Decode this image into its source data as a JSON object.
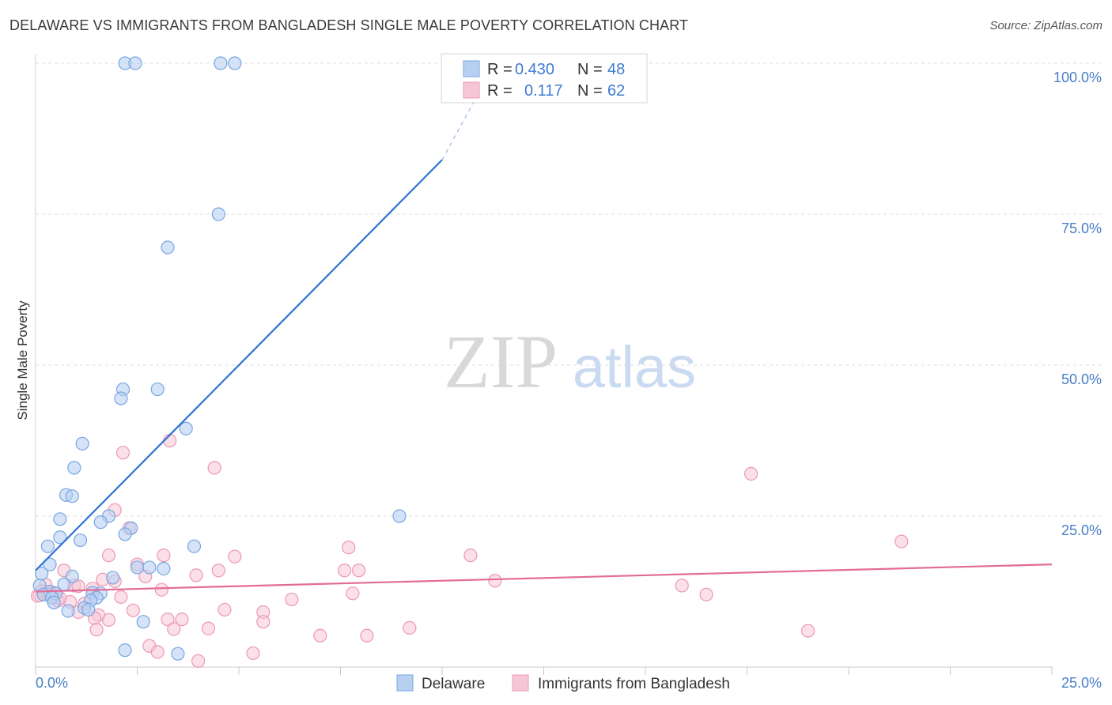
{
  "title": "DELAWARE VS IMMIGRANTS FROM BANGLADESH SINGLE MALE POVERTY CORRELATION CHART",
  "source": "Source: ZipAtlas.com",
  "watermark": {
    "zip": "ZIP",
    "atlas": "atlas"
  },
  "colors": {
    "delaware_fill": "#b7d0f2",
    "delaware_stroke": "#7aa6e0",
    "delaware_line": "#2f72d3",
    "bangladesh_fill": "#f7c6d6",
    "bangladesh_stroke": "#ec98b4",
    "bangladesh_line": "#e36c96",
    "tick_text": "#4a7fc8",
    "grid": "#dcdcdc"
  },
  "legend": {
    "r_label": "R =",
    "n_label": "N =",
    "series": [
      {
        "name": "Delaware",
        "r": "0.430",
        "n": "48"
      },
      {
        "name": "Immigrants from Bangladesh",
        "r": "0.117",
        "n": "62"
      }
    ]
  },
  "chart_data": {
    "type": "scatter",
    "title": "DELAWARE VS IMMIGRANTS FROM BANGLADESH SINGLE MALE POVERTY CORRELATION CHART",
    "xlabel": "",
    "ylabel": "Single Male Poverty",
    "xlim": [
      0,
      25
    ],
    "ylim": [
      0,
      100
    ],
    "x_tick_labels": [
      "0.0%",
      "25.0%"
    ],
    "y_ticks": [
      25,
      50,
      75,
      100
    ],
    "y_tick_labels": [
      "25.0%",
      "50.0%",
      "75.0%",
      "100.0%"
    ],
    "legend_position": "top-center",
    "grid": true,
    "series": [
      {
        "name": "Delaware",
        "r": 0.43,
        "n": 48,
        "trend": {
          "x": [
            0,
            10
          ],
          "y": [
            16,
            84
          ],
          "dashed_extension_to": [
            11.3,
            100
          ]
        },
        "points": [
          {
            "x": 2.2,
            "y": 100
          },
          {
            "x": 2.45,
            "y": 100
          },
          {
            "x": 4.55,
            "y": 100
          },
          {
            "x": 4.9,
            "y": 100
          },
          {
            "x": 4.5,
            "y": 75
          },
          {
            "x": 3.25,
            "y": 69.5
          },
          {
            "x": 2.15,
            "y": 46
          },
          {
            "x": 3.0,
            "y": 46
          },
          {
            "x": 2.1,
            "y": 44.5
          },
          {
            "x": 3.7,
            "y": 39.5
          },
          {
            "x": 1.15,
            "y": 37
          },
          {
            "x": 0.95,
            "y": 33
          },
          {
            "x": 0.75,
            "y": 28.5
          },
          {
            "x": 0.9,
            "y": 28.3
          },
          {
            "x": 8.95,
            "y": 25
          },
          {
            "x": 1.8,
            "y": 25
          },
          {
            "x": 0.6,
            "y": 24.5
          },
          {
            "x": 1.6,
            "y": 24
          },
          {
            "x": 2.35,
            "y": 23
          },
          {
            "x": 2.2,
            "y": 22
          },
          {
            "x": 0.6,
            "y": 21.5
          },
          {
            "x": 1.1,
            "y": 21
          },
          {
            "x": 0.3,
            "y": 20
          },
          {
            "x": 3.9,
            "y": 20
          },
          {
            "x": 0.35,
            "y": 17
          },
          {
            "x": 2.5,
            "y": 16.5
          },
          {
            "x": 2.8,
            "y": 16.5
          },
          {
            "x": 3.15,
            "y": 16.3
          },
          {
            "x": 0.15,
            "y": 15.5
          },
          {
            "x": 0.9,
            "y": 15
          },
          {
            "x": 1.9,
            "y": 14.8
          },
          {
            "x": 0.7,
            "y": 13.7
          },
          {
            "x": 0.1,
            "y": 13.5
          },
          {
            "x": 0.35,
            "y": 12.5
          },
          {
            "x": 0.5,
            "y": 12.2
          },
          {
            "x": 1.4,
            "y": 12.3
          },
          {
            "x": 1.6,
            "y": 12.2
          },
          {
            "x": 0.2,
            "y": 12
          },
          {
            "x": 0.4,
            "y": 11.5
          },
          {
            "x": 1.5,
            "y": 11.5
          },
          {
            "x": 1.35,
            "y": 11
          },
          {
            "x": 0.45,
            "y": 10.7
          },
          {
            "x": 1.2,
            "y": 9.8
          },
          {
            "x": 1.3,
            "y": 9.5
          },
          {
            "x": 0.8,
            "y": 9.3
          },
          {
            "x": 2.65,
            "y": 7.5
          },
          {
            "x": 2.2,
            "y": 2.8
          },
          {
            "x": 3.5,
            "y": 2.2
          }
        ]
      },
      {
        "name": "Immigrants from Bangladesh",
        "r": 0.117,
        "n": 62,
        "trend": {
          "x": [
            0,
            25
          ],
          "y": [
            12.5,
            17
          ]
        },
        "points": [
          {
            "x": 3.3,
            "y": 37.5
          },
          {
            "x": 2.15,
            "y": 35.5
          },
          {
            "x": 4.4,
            "y": 33
          },
          {
            "x": 17.6,
            "y": 32
          },
          {
            "x": 1.95,
            "y": 26
          },
          {
            "x": 2.3,
            "y": 23
          },
          {
            "x": 21.3,
            "y": 20.8
          },
          {
            "x": 7.7,
            "y": 19.8
          },
          {
            "x": 1.8,
            "y": 18.5
          },
          {
            "x": 3.15,
            "y": 18.5
          },
          {
            "x": 4.9,
            "y": 18.3
          },
          {
            "x": 10.7,
            "y": 18.5
          },
          {
            "x": 2.5,
            "y": 17
          },
          {
            "x": 0.7,
            "y": 16
          },
          {
            "x": 4.5,
            "y": 16
          },
          {
            "x": 7.6,
            "y": 16
          },
          {
            "x": 7.95,
            "y": 16
          },
          {
            "x": 3.95,
            "y": 15.2
          },
          {
            "x": 2.7,
            "y": 15
          },
          {
            "x": 1.65,
            "y": 14.5
          },
          {
            "x": 1.95,
            "y": 14.2
          },
          {
            "x": 11.3,
            "y": 14.3
          },
          {
            "x": 0.25,
            "y": 13.6
          },
          {
            "x": 0.95,
            "y": 13.5
          },
          {
            "x": 1.05,
            "y": 13.4
          },
          {
            "x": 15.9,
            "y": 13.5
          },
          {
            "x": 1.4,
            "y": 13
          },
          {
            "x": 3.1,
            "y": 12.8
          },
          {
            "x": 0.45,
            "y": 12.3
          },
          {
            "x": 7.8,
            "y": 12.2
          },
          {
            "x": 16.5,
            "y": 12
          },
          {
            "x": 0.1,
            "y": 11.9
          },
          {
            "x": 2.1,
            "y": 11.6
          },
          {
            "x": 6.3,
            "y": 11.2
          },
          {
            "x": 0.55,
            "y": 11
          },
          {
            "x": 0.85,
            "y": 10.8
          },
          {
            "x": 1.2,
            "y": 10.5
          },
          {
            "x": 4.65,
            "y": 9.5
          },
          {
            "x": 2.4,
            "y": 9.4
          },
          {
            "x": 5.6,
            "y": 9.1
          },
          {
            "x": 1.05,
            "y": 9.1
          },
          {
            "x": 1.55,
            "y": 8.6
          },
          {
            "x": 1.45,
            "y": 8.1
          },
          {
            "x": 3.25,
            "y": 7.9
          },
          {
            "x": 3.6,
            "y": 7.9
          },
          {
            "x": 1.8,
            "y": 7.8
          },
          {
            "x": 5.6,
            "y": 7.5
          },
          {
            "x": 3.4,
            "y": 6.3
          },
          {
            "x": 4.25,
            "y": 6.4
          },
          {
            "x": 1.5,
            "y": 6.2
          },
          {
            "x": 9.2,
            "y": 6.5
          },
          {
            "x": 19.0,
            "y": 6.0
          },
          {
            "x": 7.0,
            "y": 5.2
          },
          {
            "x": 8.15,
            "y": 5.2
          },
          {
            "x": 2.8,
            "y": 3.5
          },
          {
            "x": 3.0,
            "y": 2.5
          },
          {
            "x": 5.35,
            "y": 2.3
          },
          {
            "x": 4.0,
            "y": 1.0
          },
          {
            "x": 0.15,
            "y": 12.6
          },
          {
            "x": 0.3,
            "y": 12.1
          },
          {
            "x": 0.6,
            "y": 11.4
          },
          {
            "x": 0.05,
            "y": 11.8
          }
        ]
      }
    ]
  }
}
